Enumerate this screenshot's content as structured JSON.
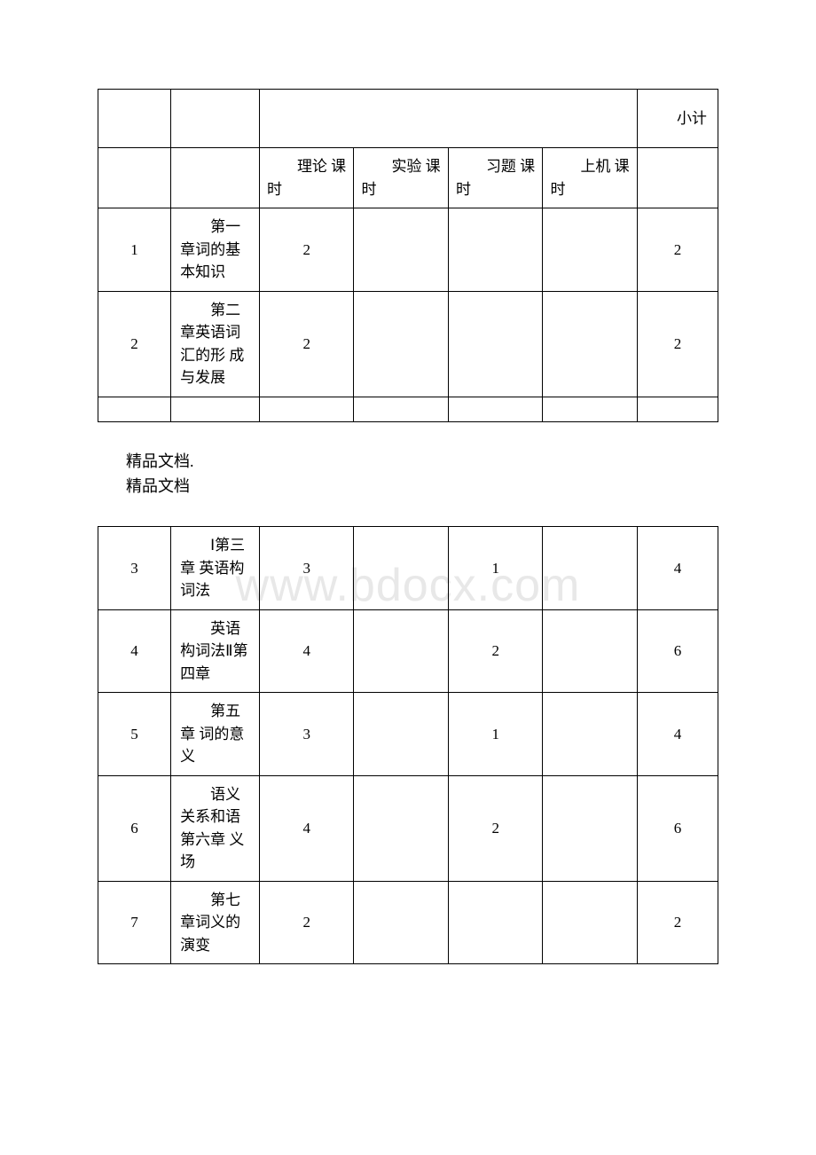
{
  "tables": {
    "header": {
      "subtotal": "小计",
      "theory": "理论 课时",
      "experiment": "实验 课时",
      "exercise": "习题 课时",
      "computer": "上机 课时"
    },
    "top_rows": [
      {
        "num": "1",
        "chapter": "第一章词的基本知识",
        "theory": "2",
        "experiment": "",
        "exercise": "",
        "computer": "",
        "subtotal": "2"
      },
      {
        "num": "2",
        "chapter": "第二章英语词汇的形 成与发展",
        "theory": "2",
        "experiment": "",
        "exercise": "",
        "computer": "",
        "subtotal": "2"
      }
    ],
    "bottom_rows": [
      {
        "num": "3",
        "chapter": "Ⅰ第三章 英语构词法",
        "theory": "3",
        "experiment": "",
        "exercise": "1",
        "computer": "",
        "subtotal": "4"
      },
      {
        "num": "4",
        "chapter": "英语构词法Ⅱ第四章",
        "theory": "4",
        "experiment": "",
        "exercise": "2",
        "computer": "",
        "subtotal": "6"
      },
      {
        "num": "5",
        "chapter": "第五章 词的意义",
        "theory": "3",
        "experiment": "",
        "exercise": "1",
        "computer": "",
        "subtotal": "4"
      },
      {
        "num": "6",
        "chapter": "语义关系和语第六章 义场",
        "theory": "4",
        "experiment": "",
        "exercise": "2",
        "computer": "",
        "subtotal": "6"
      },
      {
        "num": "7",
        "chapter": "第七章词义的演变",
        "theory": "2",
        "experiment": "",
        "exercise": "",
        "computer": "",
        "subtotal": "2"
      }
    ]
  },
  "body_text": {
    "line1": "精品文档.",
    "line2": "精品文档"
  },
  "colors": {
    "border": "#000000",
    "text": "#000000",
    "background": "#ffffff",
    "watermark": "#e8e8e8"
  }
}
